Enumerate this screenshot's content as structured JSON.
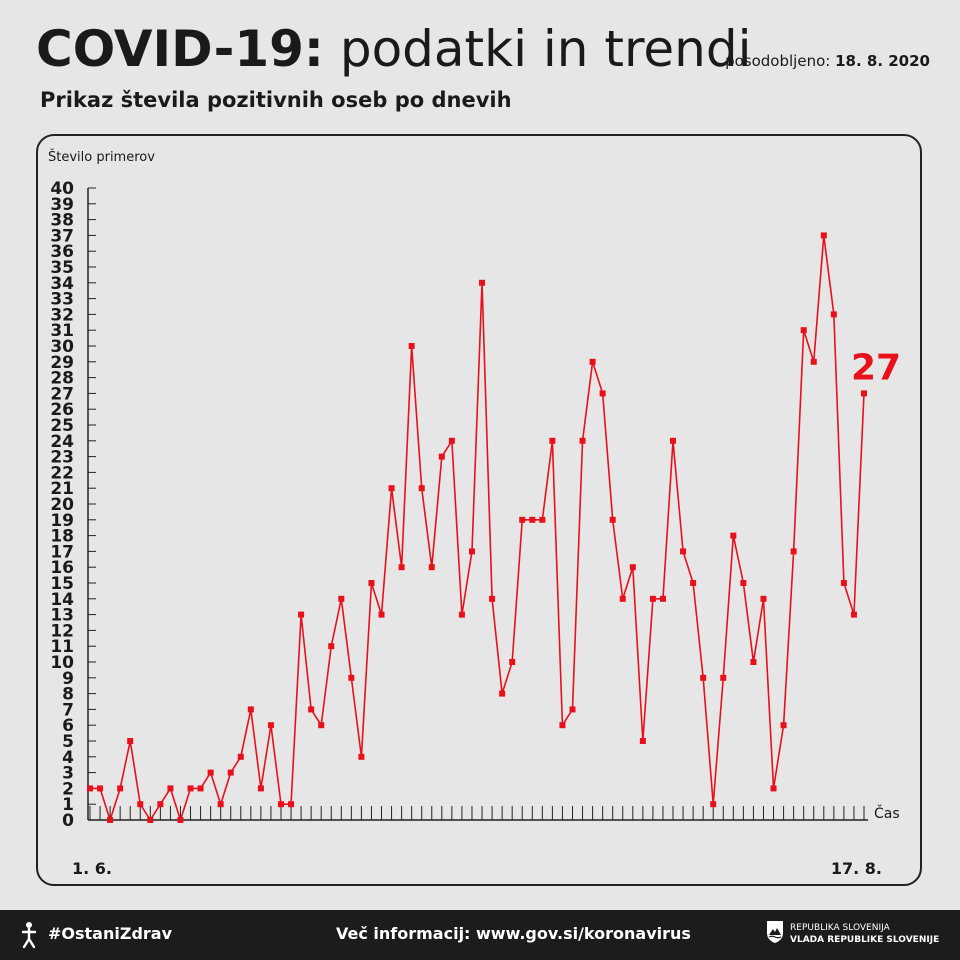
{
  "header": {
    "title_bold": "COVID-19:",
    "title_light": "podatki in trendi",
    "updated_label": "posodobljeno:",
    "updated_date": "18. 8. 2020",
    "subtitle": "Prikaz števila pozitivnih oseb po dnevih"
  },
  "chart_data": {
    "type": "line",
    "ylabel": "Število primerov",
    "xlabel": "Čas",
    "x_start_label": "1. 6.",
    "x_end_label": "17. 8.",
    "ylim": [
      0,
      40
    ],
    "yticks": [
      "0",
      "1",
      "2",
      "3",
      "4",
      "5",
      "6",
      "7",
      "8",
      "9",
      "10",
      "11",
      "12",
      "13",
      "14",
      "15",
      "16",
      "17",
      "18",
      "19",
      "20",
      "21",
      "22",
      "23",
      "24",
      "25",
      "26",
      "27",
      "28",
      "29",
      "30",
      "31",
      "32",
      "33",
      "34",
      "35",
      "36",
      "37",
      "38",
      "39",
      "40"
    ],
    "last_value_label": "27",
    "grid": false,
    "color": "#e8101a",
    "series": [
      {
        "values": [
          2,
          2,
          0,
          2,
          5,
          1,
          0,
          1,
          2,
          0,
          2,
          2,
          3,
          1,
          3,
          4,
          7,
          2,
          6,
          1,
          1,
          13,
          7,
          6,
          11,
          14,
          9,
          4,
          15,
          13,
          21,
          16,
          30,
          21,
          16,
          23,
          24,
          13,
          17,
          34,
          14,
          8,
          10,
          19,
          19,
          19,
          24,
          6,
          7,
          24,
          29,
          27,
          19,
          14,
          16,
          5,
          14,
          14,
          24,
          17,
          15,
          9,
          1,
          9,
          18,
          15,
          10,
          14,
          2,
          6,
          17,
          31,
          29,
          37,
          32,
          15,
          13,
          27
        ]
      }
    ]
  },
  "footer": {
    "hashtag": "#OstaniZdrav",
    "info": "Več informacij: www.gov.si/koronavirus",
    "gov_line1": "REPUBLIKA SLOVENIJA",
    "gov_line2": "VLADA REPUBLIKE SLOVENIJE"
  }
}
